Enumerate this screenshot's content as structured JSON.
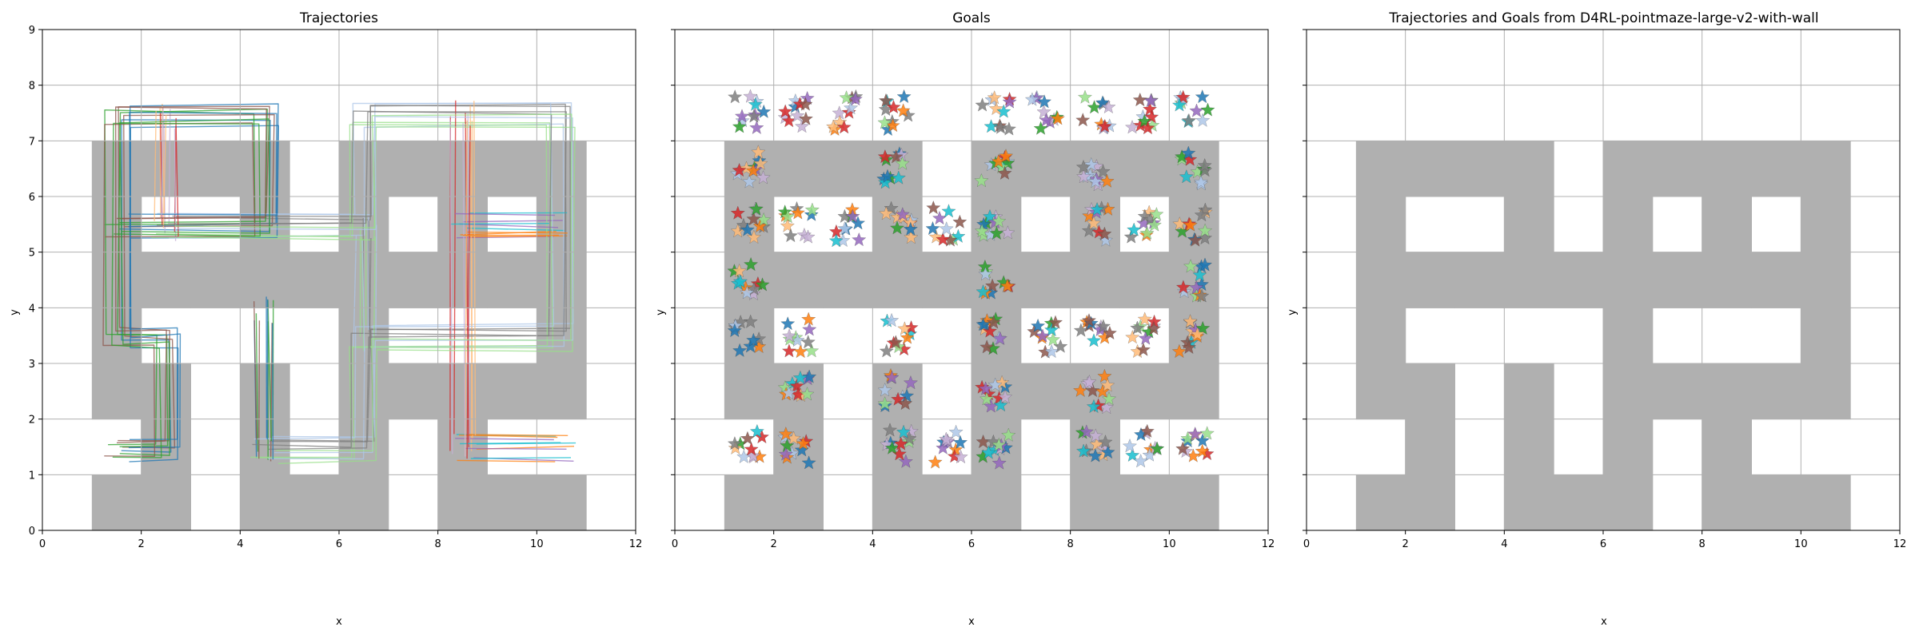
{
  "figure": {
    "colors": {
      "wall": "#b0b0b0",
      "grid": "#b0b0b0",
      "axes": "#000000",
      "background": "#ffffff",
      "palette": [
        "#1f77b4",
        "#aec7e8",
        "#ff7f0e",
        "#ffbb78",
        "#2ca02c",
        "#98df8a",
        "#9467bd",
        "#c5b0d5",
        "#8c564b",
        "#7f7f7f",
        "#17becf",
        "#d62728"
      ]
    }
  },
  "chart_data": [
    {
      "type": "scatter",
      "title": "Trajectories",
      "xlabel": "x",
      "ylabel": "y",
      "xlim": [
        0,
        12
      ],
      "ylim": [
        9,
        0
      ],
      "xticks": [
        "0",
        "2",
        "4",
        "6",
        "8",
        "10",
        "12"
      ],
      "yticks": [
        "0",
        "1",
        "2",
        "3",
        "4",
        "5",
        "6",
        "7",
        "8",
        "9"
      ],
      "grid": true,
      "legend": "none",
      "content": "maze walls with overlaid trajectory lines (many series)",
      "trajectory_corridors": [
        [
          [
            1.5,
            1.5
          ],
          [
            2.5,
            1.5
          ],
          [
            2.5,
            3.5
          ],
          [
            1.5,
            3.5
          ],
          [
            1.5,
            7.5
          ],
          [
            4.5,
            7.5
          ],
          [
            4.5,
            5.5
          ],
          [
            1.5,
            5.5
          ]
        ],
        [
          [
            4.5,
            1.5
          ],
          [
            6.5,
            1.5
          ],
          [
            6.5,
            3.5
          ],
          [
            10.5,
            3.5
          ],
          [
            10.5,
            7.5
          ],
          [
            6.5,
            7.5
          ],
          [
            6.5,
            5.5
          ],
          [
            2.5,
            5.5
          ]
        ],
        [
          [
            8.5,
            1.5
          ],
          [
            10.5,
            1.5
          ]
        ],
        [
          [
            8.5,
            1.5
          ],
          [
            8.5,
            7.5
          ]
        ],
        [
          [
            4.5,
            1.5
          ],
          [
            4.5,
            4.0
          ]
        ],
        [
          [
            6.5,
            3.5
          ],
          [
            6.5,
            5.5
          ]
        ],
        [
          [
            8.5,
            5.5
          ],
          [
            10.5,
            5.5
          ]
        ],
        [
          [
            2.5,
            5.5
          ],
          [
            2.5,
            7.5
          ]
        ]
      ]
    },
    {
      "type": "scatter",
      "title": "Goals",
      "xlabel": "x",
      "ylabel": "y",
      "xlim": [
        0,
        12
      ],
      "ylim": [
        9,
        0
      ],
      "xticks": [
        "0",
        "2",
        "4",
        "6",
        "8",
        "10",
        "12"
      ],
      "yticks": [
        "0",
        "1",
        "2",
        "3",
        "4",
        "5",
        "6",
        "7",
        "8",
        "9"
      ],
      "grid": true,
      "legend": "none",
      "marker": "star",
      "goal_cells": [
        [
          1.5,
          1.5
        ],
        [
          2.5,
          1.5
        ],
        [
          4.5,
          1.5
        ],
        [
          5.5,
          1.5
        ],
        [
          6.5,
          1.5
        ],
        [
          8.5,
          1.5
        ],
        [
          9.5,
          1.5
        ],
        [
          10.5,
          1.5
        ],
        [
          2.5,
          2.5
        ],
        [
          4.5,
          2.5
        ],
        [
          6.5,
          2.5
        ],
        [
          8.5,
          2.5
        ],
        [
          1.5,
          3.5
        ],
        [
          2.5,
          3.5
        ],
        [
          4.5,
          3.5
        ],
        [
          6.5,
          3.5
        ],
        [
          7.5,
          3.5
        ],
        [
          8.5,
          3.5
        ],
        [
          9.5,
          3.5
        ],
        [
          10.5,
          3.5
        ],
        [
          1.5,
          4.5
        ],
        [
          6.5,
          4.5
        ],
        [
          10.5,
          4.5
        ],
        [
          1.5,
          5.5
        ],
        [
          2.5,
          5.5
        ],
        [
          3.5,
          5.5
        ],
        [
          4.5,
          5.5
        ],
        [
          5.5,
          5.5
        ],
        [
          6.5,
          5.5
        ],
        [
          8.5,
          5.5
        ],
        [
          9.5,
          5.5
        ],
        [
          10.5,
          5.5
        ],
        [
          1.5,
          6.5
        ],
        [
          4.5,
          6.5
        ],
        [
          6.5,
          6.5
        ],
        [
          8.5,
          6.5
        ],
        [
          10.5,
          6.5
        ],
        [
          1.5,
          7.5
        ],
        [
          2.5,
          7.5
        ],
        [
          3.5,
          7.5
        ],
        [
          4.5,
          7.5
        ],
        [
          6.5,
          7.5
        ],
        [
          7.5,
          7.5
        ],
        [
          8.5,
          7.5
        ],
        [
          9.5,
          7.5
        ],
        [
          10.5,
          7.5
        ]
      ]
    },
    {
      "type": "heatmap",
      "title": "Trajectories and Goals from D4RL-pointmaze-large-v2-with-wall",
      "xlabel": "x",
      "ylabel": "y",
      "xlim": [
        0,
        12
      ],
      "ylim": [
        9,
        0
      ],
      "xticks": [
        "0",
        "2",
        "4",
        "6",
        "8",
        "10",
        "12"
      ],
      "yticks": [
        "0",
        "1",
        "2",
        "3",
        "4",
        "5",
        "6",
        "7",
        "8",
        "9"
      ],
      "grid": true,
      "legend": "none",
      "content": "maze walls only"
    }
  ],
  "maze": {
    "grid_origin": [
      0,
      0
    ],
    "wall_cells": [
      [
        1,
        1
      ],
      [
        2,
        1
      ],
      [
        4,
        1
      ],
      [
        5,
        1
      ],
      [
        6,
        1
      ],
      [
        8,
        1
      ],
      [
        9,
        1
      ],
      [
        10,
        1
      ],
      [
        2,
        2
      ],
      [
        4,
        2
      ],
      [
        6,
        2
      ],
      [
        8,
        2
      ],
      [
        1,
        3
      ],
      [
        2,
        3
      ],
      [
        4,
        3
      ],
      [
        6,
        3
      ],
      [
        7,
        3
      ],
      [
        8,
        3
      ],
      [
        9,
        3
      ],
      [
        10,
        3
      ],
      [
        1,
        4
      ],
      [
        6,
        4
      ],
      [
        10,
        4
      ],
      [
        1,
        5
      ],
      [
        2,
        5
      ],
      [
        3,
        5
      ],
      [
        4,
        5
      ],
      [
        5,
        5
      ],
      [
        6,
        5
      ],
      [
        7,
        5
      ],
      [
        8,
        5
      ],
      [
        9,
        5
      ],
      [
        10,
        5
      ],
      [
        1,
        6
      ],
      [
        4,
        6
      ],
      [
        6,
        6
      ],
      [
        8,
        6
      ],
      [
        10,
        6
      ],
      [
        1,
        7
      ],
      [
        2,
        7
      ],
      [
        3,
        7
      ],
      [
        4,
        7
      ],
      [
        6,
        7
      ],
      [
        7,
        7
      ],
      [
        8,
        7
      ],
      [
        9,
        7
      ],
      [
        10,
        7
      ]
    ]
  }
}
